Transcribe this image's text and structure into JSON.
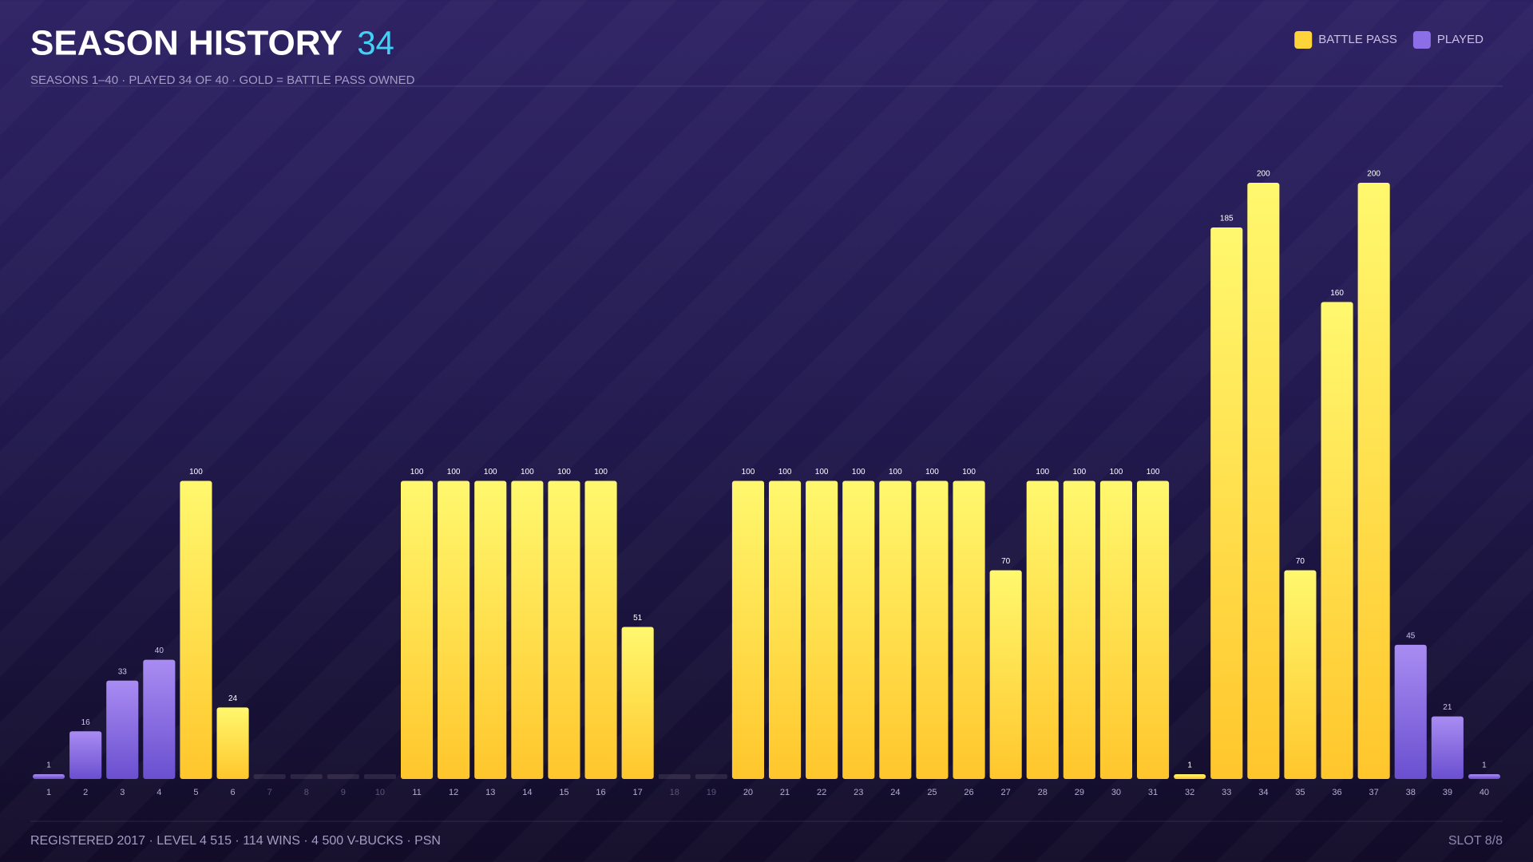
{
  "chart_data": {
    "type": "bar",
    "title": "SEASON HISTORY",
    "title_count": "34",
    "subtitle": "SEASONS 1–40 · PLAYED 34 OF 40 · GOLD = BATTLE PASS OWNED",
    "footer": "REGISTERED 2017 · LEVEL 4 515 · 114 WINS · 4 500 V-BUCKS · PSN",
    "slot": "SLOT 8/8",
    "categories": [
      "1",
      "2",
      "3",
      "4",
      "5",
      "6",
      "7",
      "8",
      "9",
      "10",
      "11",
      "12",
      "13",
      "14",
      "15",
      "16",
      "17",
      "18",
      "19",
      "20",
      "21",
      "22",
      "23",
      "24",
      "25",
      "26",
      "27",
      "28",
      "29",
      "30",
      "31",
      "32",
      "33",
      "34",
      "35",
      "36",
      "37",
      "38",
      "39",
      "40"
    ],
    "series": [
      {
        "name": "BATTLE PASS",
        "color": "#ffd43b",
        "values": [
          null,
          null,
          null,
          null,
          100,
          24,
          null,
          null,
          null,
          null,
          100,
          100,
          100,
          100,
          100,
          100,
          51,
          null,
          null,
          100,
          100,
          100,
          100,
          100,
          100,
          100,
          70,
          100,
          100,
          100,
          100,
          1,
          185,
          200,
          70,
          160,
          200,
          null,
          null,
          null
        ]
      },
      {
        "name": "PLAYED",
        "color": "#8c6ee6",
        "values": [
          1,
          16,
          33,
          40,
          null,
          null,
          null,
          null,
          null,
          null,
          null,
          null,
          null,
          null,
          null,
          null,
          null,
          null,
          null,
          null,
          null,
          null,
          null,
          null,
          null,
          null,
          null,
          null,
          null,
          null,
          null,
          null,
          null,
          null,
          null,
          null,
          null,
          45,
          21,
          1
        ]
      }
    ],
    "ylim": [
      0,
      200
    ],
    "legend": "top-right"
  }
}
